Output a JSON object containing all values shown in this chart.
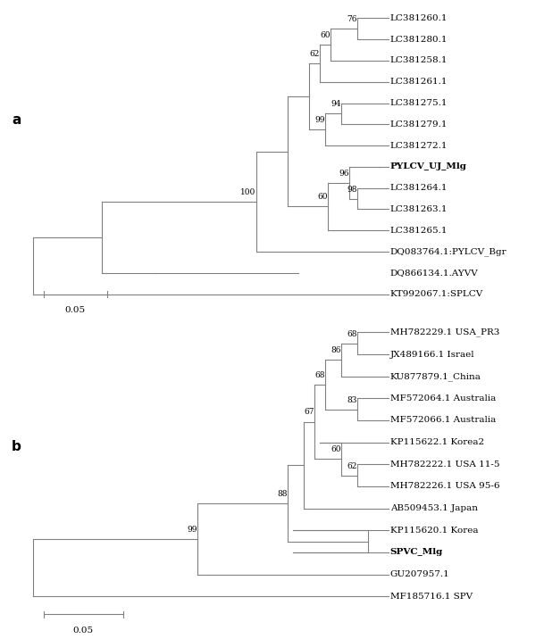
{
  "tree_a": {
    "label": "a",
    "leaves": [
      "LC381260.1",
      "LC381280.1",
      "LC381258.1",
      "LC381261.1",
      "LC381275.1",
      "LC381279.1",
      "LC381272.1",
      "PYLCV_UJ_Mlg",
      "LC381264.1",
      "LC381263.1",
      "LC381265.1",
      "DQ083764.1:PYLCV_Bgr",
      "DQ866134.1.AYVV",
      "KT992067.1:SPLCV"
    ],
    "bold_leaves": [
      "PYLCV_UJ_Mlg"
    ],
    "scalebar": 0.05,
    "scalebar_label": "0.05"
  },
  "tree_b": {
    "label": "b",
    "leaves": [
      "MH782229.1 USA_PR3",
      "JX489166.1 Israel",
      "KU877879.1_China",
      "MF572064.1 Australia",
      "MF572066.1 Australia",
      "KP115622.1 Korea2",
      "MH782222.1 USA 11-5",
      "MH782226.1 USA 95-6",
      "AB509453.1 Japan",
      "KP115620.1 Korea",
      "SPVC_Mlg",
      "GU207957.1",
      "MF185716.1 SPV"
    ],
    "bold_leaves": [
      "SPVC_Mlg"
    ],
    "scalebar": 0.05,
    "scalebar_label": "0.05"
  },
  "line_color": "#808080",
  "text_color": "#000000",
  "bg_color": "#ffffff",
  "fontsize": 7.5,
  "label_fontsize": 11
}
